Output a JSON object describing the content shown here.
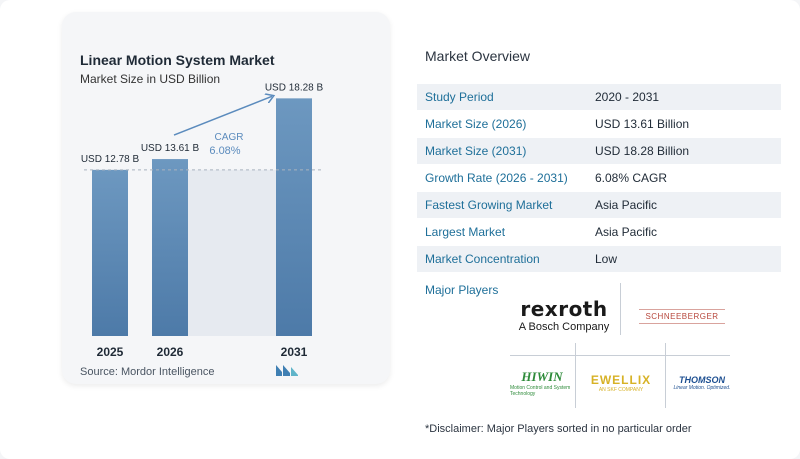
{
  "chart_data": {
    "type": "bar",
    "title": "Linear Motion System Market",
    "subtitle": "Market Size in USD Billion",
    "categories": [
      "2025",
      "2026",
      "2031"
    ],
    "values": [
      12.78,
      13.61,
      18.28
    ],
    "data_labels": [
      "USD 12.78 B",
      "USD 13.61 B",
      "USD 18.28 B"
    ],
    "ylim": [
      0,
      20
    ],
    "grid": false,
    "annotation": {
      "label": "CAGR",
      "value": "6.08%"
    }
  },
  "chart_colors": {
    "bar_top": "#6d98c0",
    "bar_bottom": "#4d7aa8",
    "band": "#e6eaf0",
    "arrow": "#5b8bbd",
    "cagr": "#5b8bbd"
  },
  "source": "Source:  Mordor Intelligence",
  "overview": {
    "title": "Market Overview",
    "rows": [
      {
        "label": "Study Period",
        "value": "2020 - 2031"
      },
      {
        "label": "Market Size (2026)",
        "value": "USD 13.61 Billion"
      },
      {
        "label": "Market Size (2031)",
        "value": "USD 18.28 Billion"
      },
      {
        "label": "Growth Rate (2026 - 2031)",
        "value": "6.08% CAGR"
      },
      {
        "label": "Fastest Growing Market",
        "value": "Asia Pacific"
      },
      {
        "label": "Largest Market",
        "value": "Asia Pacific"
      },
      {
        "label": "Market Concentration",
        "value": "Low"
      }
    ]
  },
  "players": {
    "label": "Major Players",
    "logos": [
      {
        "name": "rexroth",
        "text": "rexroth",
        "sub": "A Bosch Company"
      },
      {
        "name": "schneeberger",
        "text": "SCHNEEBERGER"
      },
      {
        "name": "hiwin",
        "text": "HIWIN",
        "sub": "Motion Control and System Technology"
      },
      {
        "name": "ewellix",
        "text": "EWELLIX",
        "sub": "AN SKF COMPANY"
      },
      {
        "name": "thomson",
        "text": "THOMSON",
        "sub": "Linear Motion. Optimized."
      }
    ]
  },
  "disclaimer": "*Disclaimer: Major Players sorted in no particular order"
}
